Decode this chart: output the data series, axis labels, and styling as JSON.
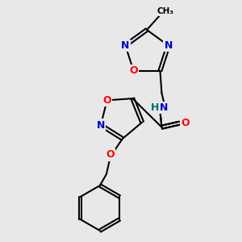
{
  "background_color": "#e8e8e8",
  "bond_color": "#000000",
  "atom_colors": {
    "N": "#0000cc",
    "O": "#ff0000",
    "H": "#007070",
    "C": "#000000"
  },
  "lw": 1.5
}
